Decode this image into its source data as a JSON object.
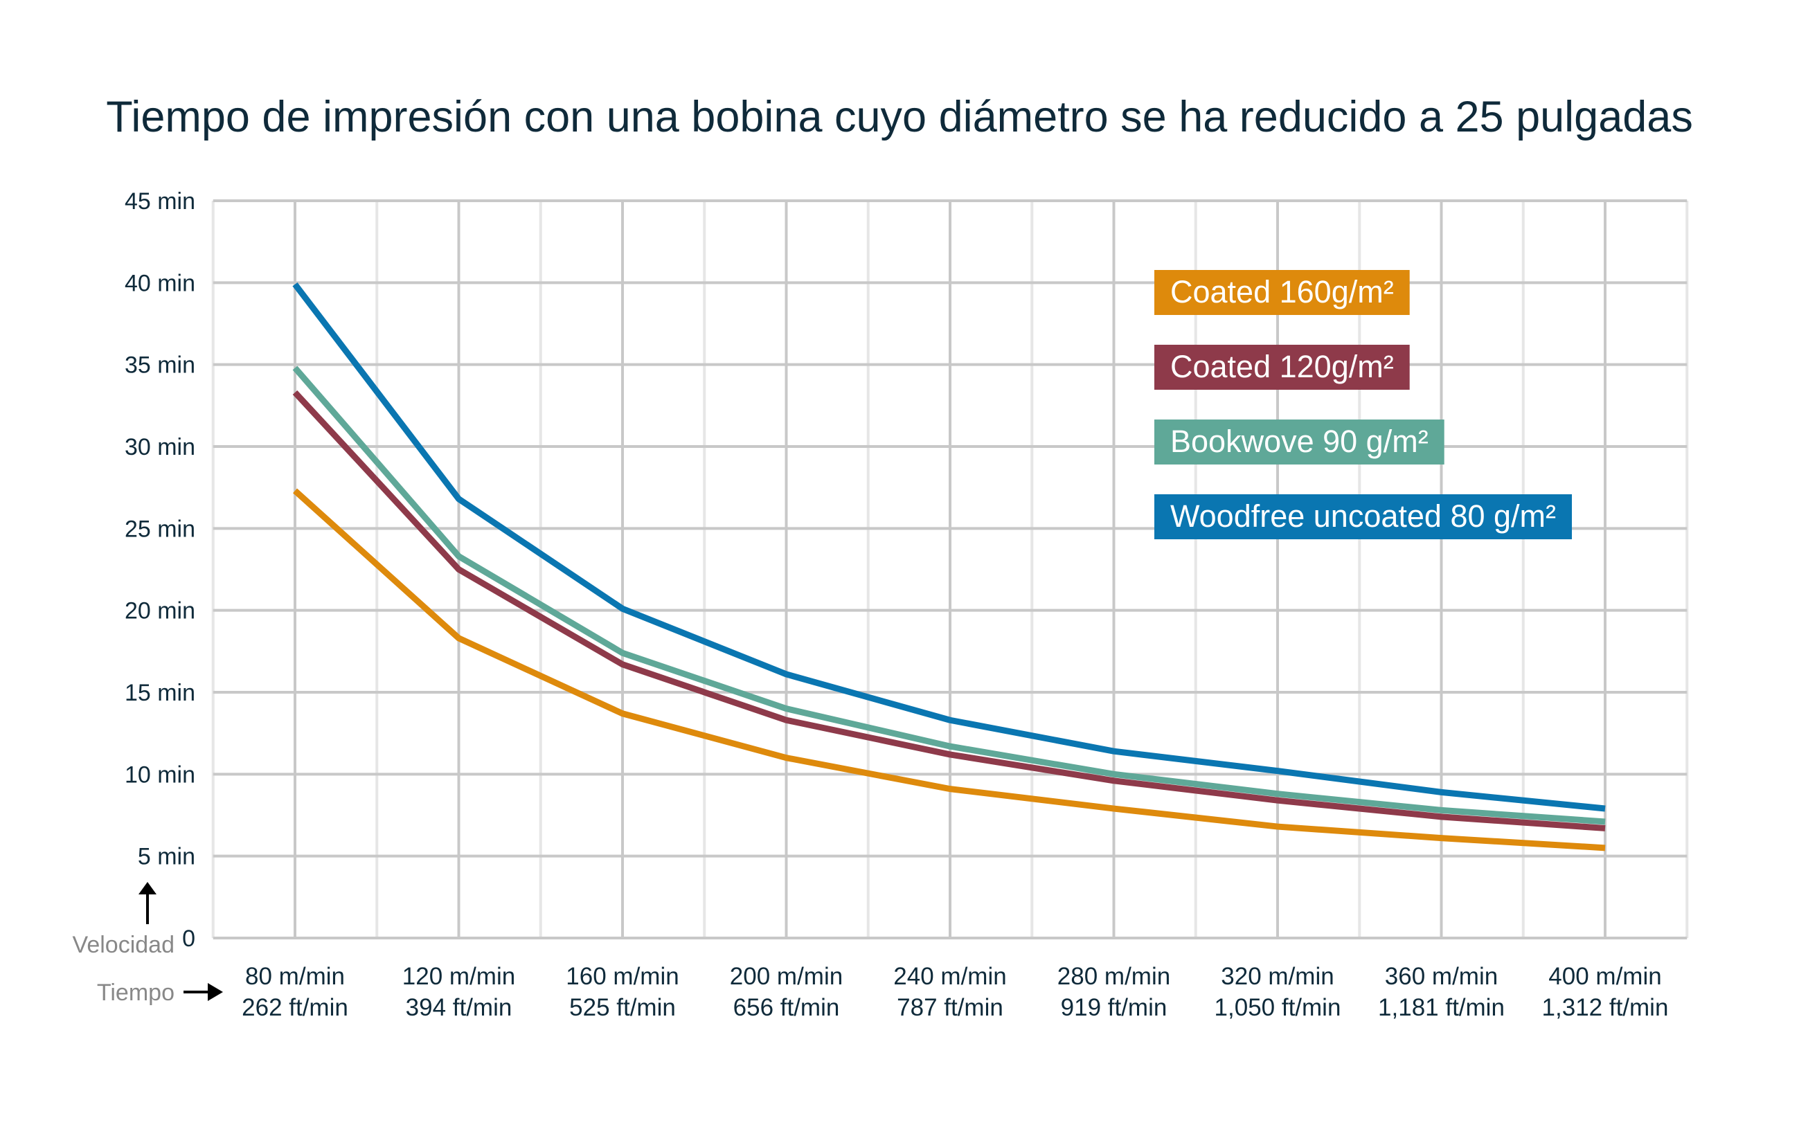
{
  "chart_data": {
    "type": "line",
    "title": "Tiempo de impresión con una bobina cuyo diámetro se ha reducido a 25 pulgadas",
    "y_axis_label": "Velocidad",
    "x_axis_label": "Tiempo",
    "ylim": [
      0,
      45
    ],
    "y_ticks": [
      "0",
      "5 min",
      "10 min",
      "15 min",
      "20 min",
      "25 min",
      "30 min",
      "35 min",
      "40 min",
      "45 min"
    ],
    "categories": [
      [
        "80 m/min",
        "262 ft/min"
      ],
      [
        "120 m/min",
        "394 ft/min"
      ],
      [
        "160 m/min",
        "525 ft/min"
      ],
      [
        "200 m/min",
        "656 ft/min"
      ],
      [
        "240 m/min",
        "787 ft/min"
      ],
      [
        "280 m/min",
        "919 ft/min"
      ],
      [
        "320 m/min",
        "1,050 ft/min"
      ],
      [
        "360 m/min",
        "1,181 ft/min"
      ],
      [
        "400 m/min",
        "1,312 ft/min"
      ]
    ],
    "grid": true,
    "legend_position": "top-right",
    "series": [
      {
        "name": "Coated 160g/m²",
        "color": "#DE8A0C",
        "values": [
          27.3,
          18.3,
          13.7,
          11.0,
          9.1,
          7.9,
          6.8,
          6.1,
          5.5
        ]
      },
      {
        "name": "Coated 120g/m²",
        "color": "#8E3A4A",
        "values": [
          33.3,
          22.5,
          16.7,
          13.3,
          11.2,
          9.6,
          8.4,
          7.4,
          6.7
        ]
      },
      {
        "name": "Bookwove 90 g/m²",
        "color": "#5FA898",
        "values": [
          34.8,
          23.3,
          17.4,
          14.0,
          11.7,
          10.0,
          8.8,
          7.8,
          7.1
        ]
      },
      {
        "name": "Woodfree uncoated 80 g/m²",
        "color": "#0A76B1",
        "values": [
          39.9,
          26.8,
          20.1,
          16.1,
          13.3,
          11.4,
          10.2,
          8.9,
          7.9
        ]
      }
    ]
  }
}
